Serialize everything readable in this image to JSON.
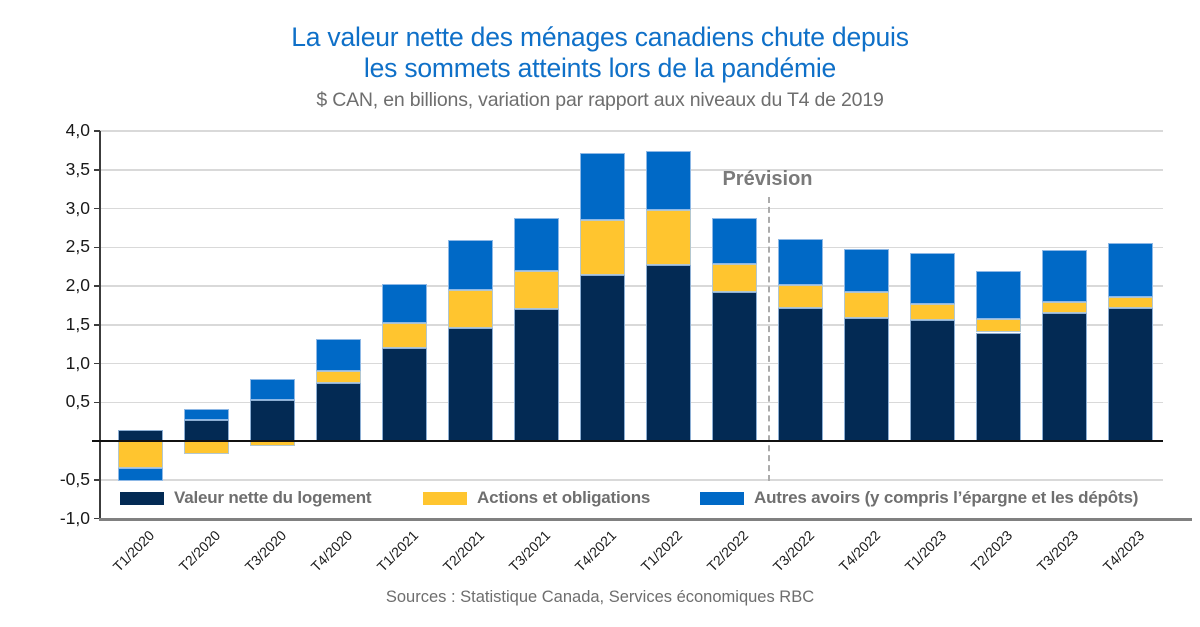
{
  "title": {
    "line1": "La valeur nette des ménages canadiens chute depuis",
    "line2": "les sommets atteints lors de la pandémie",
    "color": "#0f70c8"
  },
  "subtitle": "$ CAN, en billions, variation par rapport aux niveaux du T4 de 2019",
  "source": "Sources : Statistique Canada, Services économiques RBC",
  "forecast": {
    "label": "Prévision",
    "starts_at_category": "T3/2022",
    "line_color": "#ababab"
  },
  "chart_data": {
    "type": "bar",
    "stacked": true,
    "grid": true,
    "legend_position": "bottom-inside",
    "ylim": [
      -1.0,
      4.0
    ],
    "y_ticks": [
      {
        "v": 4.0,
        "label": "4,0"
      },
      {
        "v": 3.5,
        "label": "3,5"
      },
      {
        "v": 3.0,
        "label": "3,0"
      },
      {
        "v": 2.5,
        "label": "2,5"
      },
      {
        "v": 2.0,
        "label": "2,0"
      },
      {
        "v": 1.5,
        "label": "1,5"
      },
      {
        "v": 1.0,
        "label": "1,0"
      },
      {
        "v": 0.5,
        "label": "0,5"
      },
      {
        "v": -0.5,
        "label": "-0,5"
      },
      {
        "v": -1.0,
        "label": "-1,0"
      }
    ],
    "categories": [
      "T1/2020",
      "T2/2020",
      "T3/2020",
      "T4/2020",
      "T1/2021",
      "T2/2021",
      "T3/2021",
      "T4/2021",
      "T1/2022",
      "T2/2022",
      "T3/2022",
      "T4/2022",
      "T1/2023",
      "T2/2023",
      "T3/2023",
      "T4/2023"
    ],
    "forecast_start_index": 10,
    "series": [
      {
        "name": "Valeur nette du logement",
        "color": "#032a54",
        "values": [
          0.14,
          0.27,
          0.53,
          0.75,
          1.2,
          1.46,
          1.7,
          2.14,
          2.27,
          1.92,
          1.71,
          1.59,
          1.56,
          1.4,
          1.65,
          1.72
        ]
      },
      {
        "name": "Actions et obligations",
        "color": "#ffc52f",
        "values": [
          -0.35,
          -0.17,
          -0.06,
          0.15,
          0.32,
          0.49,
          0.49,
          0.71,
          0.71,
          0.36,
          0.3,
          0.33,
          0.21,
          0.17,
          0.14,
          0.14
        ]
      },
      {
        "name": "Autres avoirs (y compris l’épargne et les dépôts)",
        "color": "#0069c6",
        "values": [
          -0.16,
          0.14,
          0.27,
          0.41,
          0.5,
          0.65,
          0.69,
          0.87,
          0.76,
          0.6,
          0.6,
          0.56,
          0.66,
          0.62,
          0.67,
          0.69
        ]
      }
    ]
  }
}
